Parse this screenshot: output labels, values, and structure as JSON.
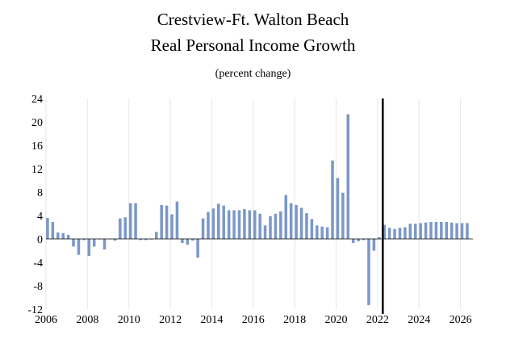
{
  "chart_data": {
    "type": "bar",
    "title_lines": [
      "Crestview-Ft. Walton Beach",
      "Real Personal Income Growth"
    ],
    "subtitle": "(percent change)",
    "xlabel": "",
    "ylabel": "",
    "ylim": [
      -12,
      24
    ],
    "yticks": [
      "24",
      "20",
      "16",
      "12",
      "8",
      "4",
      "0",
      "-4",
      "-8",
      "-12"
    ],
    "ytick_values": [
      24,
      20,
      16,
      12,
      8,
      4,
      0,
      -4,
      -8,
      -12
    ],
    "xticks": [
      "2006",
      "2008",
      "2010",
      "2012",
      "2014",
      "2016",
      "2018",
      "2020",
      "2022",
      "2024",
      "2026"
    ],
    "x_start_year": 2006,
    "x_end_year": 2026.6,
    "periods_per_year": 4,
    "forecast_line_year": 2022.25,
    "grid": "vertical gridlines at each tick year",
    "bar_color": "#7b98c8",
    "grid_color": "#e6e6e6",
    "forecast_line_color": "#000000",
    "series": [
      {
        "name": "Real Personal Income Growth",
        "start": "2006Q1",
        "values": [
          3.6,
          2.9,
          1.1,
          1.0,
          0.7,
          -1.3,
          -2.7,
          -0.2,
          -2.9,
          -1.3,
          0.0,
          -1.8,
          0.0,
          -0.3,
          3.5,
          3.7,
          6.1,
          6.1,
          -0.2,
          -0.2,
          -0.1,
          1.2,
          5.8,
          5.7,
          4.2,
          6.4,
          -0.7,
          -1.0,
          -0.3,
          -3.2,
          3.5,
          4.6,
          5.2,
          6.0,
          5.7,
          4.9,
          4.9,
          4.9,
          5.1,
          4.9,
          4.9,
          4.3,
          2.3,
          3.9,
          4.3,
          4.7,
          7.5,
          6.1,
          5.8,
          5.3,
          4.4,
          3.4,
          2.3,
          2.1,
          2.0,
          13.4,
          10.4,
          7.9,
          21.3,
          -0.7,
          -0.4,
          -0.2,
          -11.3,
          -2.0,
          0.3,
          2.4,
          1.9,
          1.7,
          1.9,
          2.0,
          2.6,
          2.6,
          2.7,
          2.8,
          2.9,
          2.9,
          2.9,
          2.9,
          2.8,
          2.7,
          2.7,
          2.7
        ]
      }
    ]
  }
}
